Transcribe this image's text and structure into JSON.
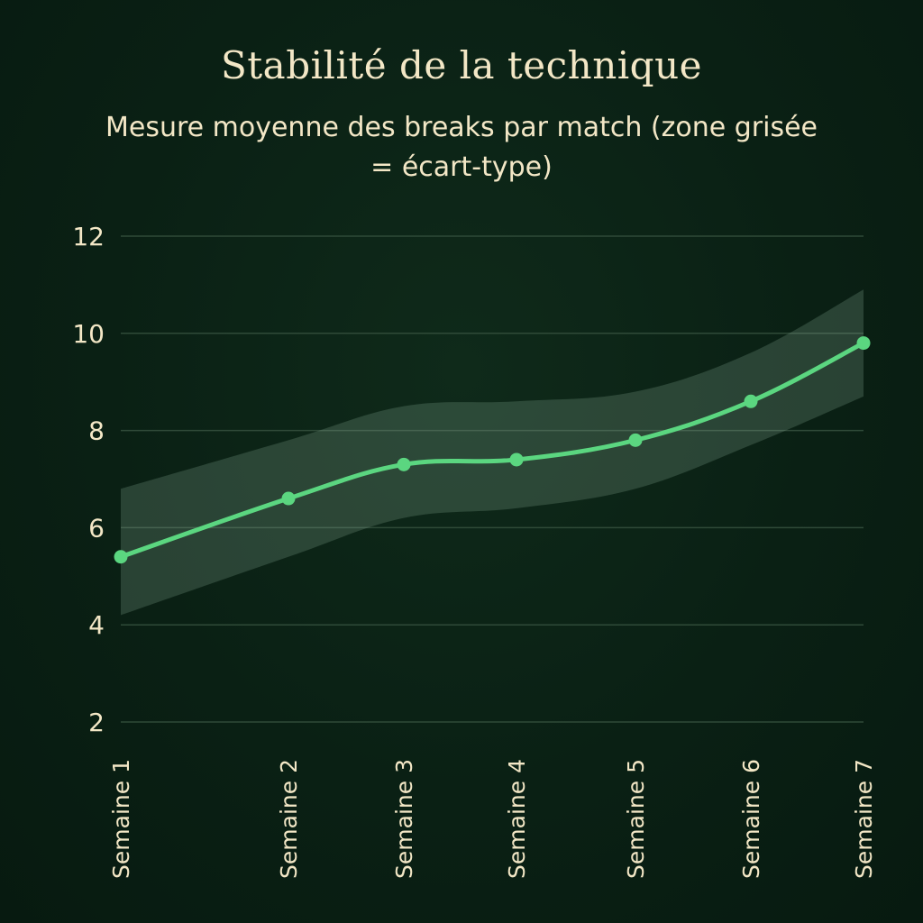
{
  "chart_data": {
    "type": "line",
    "title": "Stabilité de la technique",
    "subtitle": "Mesure moyenne des breaks par match (zone grisée = écart-type)",
    "categories": [
      "Semaine 1",
      "Semaine 2",
      "Semaine 3",
      "Semaine 4",
      "Semaine 5",
      "Semaine 6",
      "Semaine 7"
    ],
    "series": [
      {
        "values": [
          5.4,
          6.6,
          7.3,
          7.4,
          7.8,
          8.6,
          9.8
        ],
        "band_lower": [
          4.2,
          5.4,
          6.2,
          6.4,
          6.8,
          7.7,
          8.7
        ],
        "band_upper": [
          6.8,
          7.8,
          8.5,
          8.6,
          8.8,
          9.6,
          10.9
        ]
      }
    ],
    "yticks": [
      2,
      4,
      6,
      8,
      10,
      12
    ],
    "ylim": [
      2,
      12
    ],
    "grid": true,
    "colors": {
      "line": "#5bd680",
      "band": "#9cbfa8",
      "grid": "#2f4a38",
      "text": "#f3e7c6"
    }
  }
}
